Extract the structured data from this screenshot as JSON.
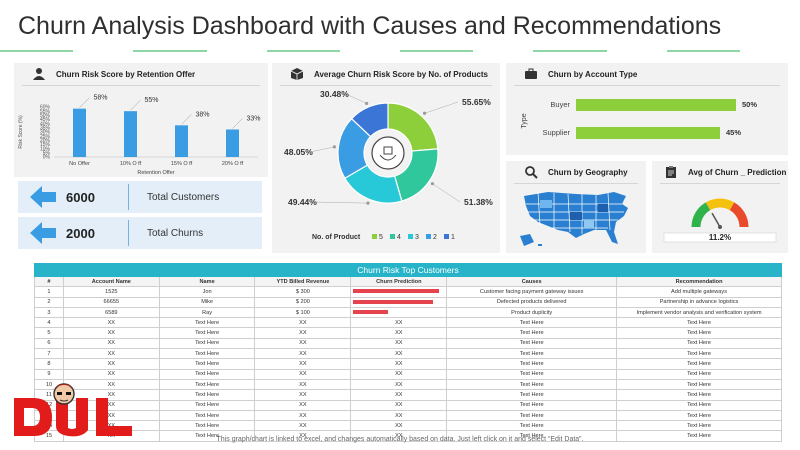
{
  "title": "Churn Analysis Dashboard with Causes and Recommendations",
  "colors": {
    "blue": "#3a9ce3",
    "green": "#8dcf3a",
    "teal": "#27b4c9",
    "red": "#e5444f"
  },
  "retention_panel": {
    "title": "Churn Risk Score by Retention Offer",
    "icon": "customer-icon",
    "y_label": "Risk Score (%)",
    "x_label": "Retention Offer",
    "y_ticks": [
      "60%",
      "55%",
      "50%",
      "45%",
      "40%",
      "35%",
      "30%",
      "25%",
      "20%",
      "15%",
      "10%",
      "5%",
      "0%"
    ],
    "chart_data": {
      "type": "bar",
      "categories": [
        "No Offer",
        "10% O ff",
        "15% O ff",
        "20% O ff"
      ],
      "values": [
        58,
        55,
        38,
        33
      ],
      "labels": [
        "58%",
        "55%",
        "38%",
        "33%"
      ],
      "ylim": [
        0,
        60
      ]
    }
  },
  "kpis": [
    {
      "value": "6000",
      "label": "Total Customers"
    },
    {
      "value": "2000",
      "label": "Total Churns"
    }
  ],
  "products_panel": {
    "title": "Average Churn Risk Score by No. of Products",
    "icon": "box-icon",
    "legend_title": "No. of Product",
    "legend": [
      {
        "label": "5",
        "color": "#8dcf3a"
      },
      {
        "label": "4",
        "color": "#2fc79b"
      },
      {
        "label": "3",
        "color": "#27c8d8"
      },
      {
        "label": "2",
        "color": "#3a9ce3"
      },
      {
        "label": "1",
        "color": "#3b76d6"
      }
    ],
    "chart_data": {
      "type": "pie",
      "categories": [
        "5",
        "4",
        "3",
        "2",
        "1"
      ],
      "values": [
        55.65,
        51.38,
        49.44,
        48.05,
        30.48
      ],
      "labels": [
        "55.65%",
        "51.38%",
        "49.44%",
        "48.05%",
        "30.48%"
      ]
    }
  },
  "account_panel": {
    "title": "Churn by Account Type",
    "icon": "briefcase-icon",
    "y_label": "Type",
    "chart_data": {
      "type": "bar",
      "categories": [
        "Buyer",
        "Supplier"
      ],
      "values": [
        50,
        45
      ],
      "labels": [
        "50%",
        "45%"
      ]
    }
  },
  "geo_panel": {
    "title": "Churn by Geography",
    "icon": "search-icon"
  },
  "prediction_panel": {
    "title": "Avg of Churn _ Prediction",
    "icon": "clipboard-icon",
    "value": 11.2,
    "value_label": "11.2%"
  },
  "table": {
    "banner": "Churn Risk Top Customers",
    "columns": [
      "#",
      "Account Name",
      "Name",
      "YTD Billed Revenue",
      "Churn Prediction",
      "Causes",
      "Recommendation"
    ],
    "rows": [
      {
        "n": "1",
        "account": "1525",
        "name": "Jon",
        "revenue": "$ 300",
        "pred": 1.0,
        "pred_text": "",
        "cause": "Customer facing payment gateway issues",
        "rec": "Add multiple gateways"
      },
      {
        "n": "2",
        "account": "66655",
        "name": "Mike",
        "revenue": "$ 200",
        "pred": 0.93,
        "pred_text": "",
        "cause": "Defected products delivered",
        "rec": "Partnership in advance logistics"
      },
      {
        "n": "3",
        "account": "6589",
        "name": "Ray",
        "revenue": "$ 100",
        "pred": 0.4,
        "pred_text": "",
        "cause": "Product duplicity",
        "rec": "Implement vendor analysis and verification system"
      },
      {
        "n": "4",
        "account": "XX",
        "name": "Text Here",
        "revenue": "XX",
        "pred": 0,
        "pred_text": "XX",
        "cause": "Text Here",
        "rec": "Text Here"
      },
      {
        "n": "5",
        "account": "XX",
        "name": "Text Here",
        "revenue": "XX",
        "pred": 0,
        "pred_text": "XX",
        "cause": "Text Here",
        "rec": "Text Here"
      },
      {
        "n": "6",
        "account": "XX",
        "name": "Text Here",
        "revenue": "XX",
        "pred": 0,
        "pred_text": "XX",
        "cause": "Text Here",
        "rec": "Text Here"
      },
      {
        "n": "7",
        "account": "XX",
        "name": "Text Here",
        "revenue": "XX",
        "pred": 0,
        "pred_text": "XX",
        "cause": "Text Here",
        "rec": "Text Here"
      },
      {
        "n": "8",
        "account": "XX",
        "name": "Text Here",
        "revenue": "XX",
        "pred": 0,
        "pred_text": "XX",
        "cause": "Text Here",
        "rec": "Text Here"
      },
      {
        "n": "9",
        "account": "XX",
        "name": "Text Here",
        "revenue": "XX",
        "pred": 0,
        "pred_text": "XX",
        "cause": "Text Here",
        "rec": "Text Here"
      },
      {
        "n": "10",
        "account": "XX",
        "name": "Text Here",
        "revenue": "XX",
        "pred": 0,
        "pred_text": "XX",
        "cause": "Text Here",
        "rec": "Text Here"
      },
      {
        "n": "11",
        "account": "XX",
        "name": "Text Here",
        "revenue": "XX",
        "pred": 0,
        "pred_text": "XX",
        "cause": "Text Here",
        "rec": "Text Here"
      },
      {
        "n": "12",
        "account": "XX",
        "name": "Text Here",
        "revenue": "XX",
        "pred": 0,
        "pred_text": "XX",
        "cause": "Text Here",
        "rec": "Text Here"
      },
      {
        "n": "13",
        "account": "XX",
        "name": "Text Here",
        "revenue": "XX",
        "pred": 0,
        "pred_text": "XX",
        "cause": "Text Here",
        "rec": "Text Here"
      },
      {
        "n": "14",
        "account": "XX",
        "name": "Text Here",
        "revenue": "XX",
        "pred": 0,
        "pred_text": "XX",
        "cause": "Text Here",
        "rec": "Text Here"
      },
      {
        "n": "15",
        "account": "XX",
        "name": "Text Here",
        "revenue": "XX",
        "pred": 0,
        "pred_text": "XX",
        "cause": "Text Here",
        "rec": "Text Here"
      }
    ]
  },
  "footnote": "This graph/chart is linked to excel, and changes automatically based on data. Just left click on it and select “Edit Data”."
}
